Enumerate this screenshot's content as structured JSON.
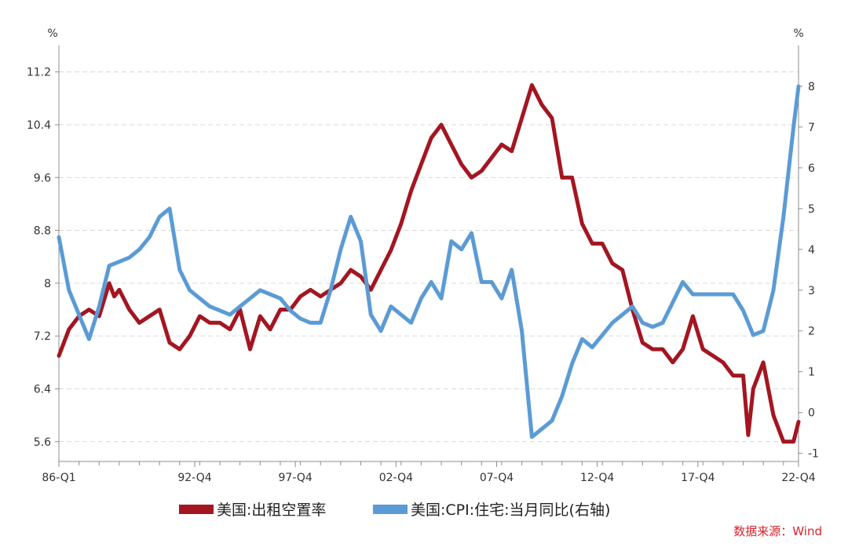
{
  "chart_data": {
    "type": "line",
    "left_unit": "%",
    "right_unit": "%",
    "x_tick_labels": [
      "86-Q1",
      "92-Q4",
      "97-Q4",
      "02-Q4",
      "07-Q4",
      "12-Q4",
      "17-Q4",
      "22-Q4"
    ],
    "left_axis": {
      "ticks": [
        "5.6",
        "6.4",
        "7.2",
        "8",
        "8.8",
        "9.6",
        "10.4",
        "11.2"
      ],
      "ylim": [
        5.3,
        11.6
      ]
    },
    "right_axis": {
      "ticks": [
        "-1",
        "0",
        "1",
        "2",
        "3",
        "4",
        "5",
        "6",
        "7",
        "8"
      ],
      "ylim": [
        -1.2,
        9.0
      ]
    },
    "x_range": [
      "1986-Q1",
      "2022-Q4"
    ],
    "series": [
      {
        "name": "美国:出租空置率",
        "axis": "left",
        "color": "#a31621",
        "points": [
          [
            "1986-Q1",
            6.9
          ],
          [
            "1986-Q3",
            7.3
          ],
          [
            "1987-Q1",
            7.5
          ],
          [
            "1987-Q3",
            7.6
          ],
          [
            "1988-Q1",
            7.5
          ],
          [
            "1988-Q3",
            8.0
          ],
          [
            "1988-Q4",
            7.8
          ],
          [
            "1989-Q1",
            7.9
          ],
          [
            "1989-Q3",
            7.6
          ],
          [
            "1990-Q1",
            7.4
          ],
          [
            "1990-Q3",
            7.5
          ],
          [
            "1991-Q1",
            7.6
          ],
          [
            "1991-Q3",
            7.1
          ],
          [
            "1992-Q1",
            7.0
          ],
          [
            "1992-Q3",
            7.2
          ],
          [
            "1993-Q1",
            7.5
          ],
          [
            "1993-Q3",
            7.4
          ],
          [
            "1994-Q1",
            7.4
          ],
          [
            "1994-Q3",
            7.3
          ],
          [
            "1995-Q1",
            7.6
          ],
          [
            "1995-Q3",
            7.0
          ],
          [
            "1996-Q1",
            7.5
          ],
          [
            "1996-Q3",
            7.3
          ],
          [
            "1997-Q1",
            7.6
          ],
          [
            "1997-Q3",
            7.6
          ],
          [
            "1998-Q1",
            7.8
          ],
          [
            "1998-Q3",
            7.9
          ],
          [
            "1999-Q1",
            7.8
          ],
          [
            "1999-Q3",
            7.9
          ],
          [
            "2000-Q1",
            8.0
          ],
          [
            "2000-Q3",
            8.2
          ],
          [
            "2001-Q1",
            8.1
          ],
          [
            "2001-Q3",
            7.9
          ],
          [
            "2002-Q1",
            8.2
          ],
          [
            "2002-Q3",
            8.5
          ],
          [
            "2003-Q1",
            8.9
          ],
          [
            "2003-Q3",
            9.4
          ],
          [
            "2004-Q1",
            9.8
          ],
          [
            "2004-Q3",
            10.2
          ],
          [
            "2005-Q1",
            10.4
          ],
          [
            "2005-Q3",
            10.1
          ],
          [
            "2006-Q1",
            9.8
          ],
          [
            "2006-Q3",
            9.6
          ],
          [
            "2007-Q1",
            9.7
          ],
          [
            "2007-Q3",
            9.9
          ],
          [
            "2008-Q1",
            10.1
          ],
          [
            "2008-Q3",
            10.0
          ],
          [
            "2009-Q1",
            10.5
          ],
          [
            "2009-Q3",
            11.0
          ],
          [
            "2010-Q1",
            10.7
          ],
          [
            "2010-Q3",
            10.5
          ],
          [
            "2011-Q1",
            9.6
          ],
          [
            "2011-Q3",
            9.6
          ],
          [
            "2012-Q1",
            8.9
          ],
          [
            "2012-Q3",
            8.6
          ],
          [
            "2013-Q1",
            8.6
          ],
          [
            "2013-Q3",
            8.3
          ],
          [
            "2014-Q1",
            8.2
          ],
          [
            "2014-Q3",
            7.6
          ],
          [
            "2015-Q1",
            7.1
          ],
          [
            "2015-Q3",
            7.0
          ],
          [
            "2016-Q1",
            7.0
          ],
          [
            "2016-Q3",
            6.8
          ],
          [
            "2017-Q1",
            7.0
          ],
          [
            "2017-Q3",
            7.5
          ],
          [
            "2018-Q1",
            7.0
          ],
          [
            "2018-Q3",
            6.9
          ],
          [
            "2019-Q1",
            6.8
          ],
          [
            "2019-Q3",
            6.6
          ],
          [
            "2020-Q1",
            6.6
          ],
          [
            "2020-Q2",
            5.7
          ],
          [
            "2020-Q3",
            6.4
          ],
          [
            "2021-Q1",
            6.8
          ],
          [
            "2021-Q3",
            6.0
          ],
          [
            "2022-Q1",
            5.6
          ],
          [
            "2022-Q3",
            5.6
          ],
          [
            "2022-Q4",
            5.9
          ]
        ]
      },
      {
        "name": "美国:CPI:住宅:当月同比(右轴)",
        "axis": "right",
        "color": "#5b9bd5",
        "points": [
          [
            "1986-Q1",
            4.3
          ],
          [
            "1986-Q3",
            3.0
          ],
          [
            "1987-Q1",
            2.4
          ],
          [
            "1987-Q3",
            1.8
          ],
          [
            "1988-Q1",
            2.6
          ],
          [
            "1988-Q3",
            3.6
          ],
          [
            "1989-Q1",
            3.7
          ],
          [
            "1989-Q3",
            3.8
          ],
          [
            "1990-Q1",
            4.0
          ],
          [
            "1990-Q3",
            4.3
          ],
          [
            "1991-Q1",
            4.8
          ],
          [
            "1991-Q3",
            5.0
          ],
          [
            "1992-Q1",
            3.5
          ],
          [
            "1992-Q3",
            3.0
          ],
          [
            "1993-Q1",
            2.8
          ],
          [
            "1993-Q3",
            2.6
          ],
          [
            "1994-Q1",
            2.5
          ],
          [
            "1994-Q3",
            2.4
          ],
          [
            "1995-Q1",
            2.6
          ],
          [
            "1995-Q3",
            2.8
          ],
          [
            "1996-Q1",
            3.0
          ],
          [
            "1996-Q3",
            2.9
          ],
          [
            "1997-Q1",
            2.8
          ],
          [
            "1997-Q3",
            2.5
          ],
          [
            "1998-Q1",
            2.3
          ],
          [
            "1998-Q3",
            2.2
          ],
          [
            "1999-Q1",
            2.2
          ],
          [
            "1999-Q3",
            3.0
          ],
          [
            "2000-Q1",
            4.0
          ],
          [
            "2000-Q3",
            4.8
          ],
          [
            "2001-Q1",
            4.2
          ],
          [
            "2001-Q3",
            2.4
          ],
          [
            "2002-Q1",
            2.0
          ],
          [
            "2002-Q3",
            2.6
          ],
          [
            "2003-Q1",
            2.4
          ],
          [
            "2003-Q3",
            2.2
          ],
          [
            "2004-Q1",
            2.8
          ],
          [
            "2004-Q3",
            3.2
          ],
          [
            "2005-Q1",
            2.8
          ],
          [
            "2005-Q3",
            4.2
          ],
          [
            "2006-Q1",
            4.0
          ],
          [
            "2006-Q3",
            4.4
          ],
          [
            "2007-Q1",
            3.2
          ],
          [
            "2007-Q3",
            3.2
          ],
          [
            "2008-Q1",
            2.8
          ],
          [
            "2008-Q3",
            3.5
          ],
          [
            "2009-Q1",
            2.0
          ],
          [
            "2009-Q3",
            -0.6
          ],
          [
            "2010-Q1",
            -0.4
          ],
          [
            "2010-Q3",
            -0.2
          ],
          [
            "2011-Q1",
            0.4
          ],
          [
            "2011-Q3",
            1.2
          ],
          [
            "2012-Q1",
            1.8
          ],
          [
            "2012-Q3",
            1.6
          ],
          [
            "2013-Q1",
            1.9
          ],
          [
            "2013-Q3",
            2.2
          ],
          [
            "2014-Q1",
            2.4
          ],
          [
            "2014-Q3",
            2.6
          ],
          [
            "2015-Q1",
            2.2
          ],
          [
            "2015-Q3",
            2.1
          ],
          [
            "2016-Q1",
            2.2
          ],
          [
            "2016-Q3",
            2.7
          ],
          [
            "2017-Q1",
            3.2
          ],
          [
            "2017-Q3",
            2.9
          ],
          [
            "2018-Q1",
            2.9
          ],
          [
            "2018-Q3",
            2.9
          ],
          [
            "2019-Q1",
            2.9
          ],
          [
            "2019-Q3",
            2.9
          ],
          [
            "2020-Q1",
            2.5
          ],
          [
            "2020-Q3",
            1.9
          ],
          [
            "2021-Q1",
            2.0
          ],
          [
            "2021-Q3",
            3.0
          ],
          [
            "2022-Q1",
            4.8
          ],
          [
            "2022-Q3",
            7.0
          ],
          [
            "2022-Q4",
            8.0
          ]
        ]
      }
    ],
    "legend": {
      "position": "bottom"
    },
    "grid": {
      "horizontal": true,
      "vertical": false
    }
  },
  "source_note": "数据来源：Wind"
}
